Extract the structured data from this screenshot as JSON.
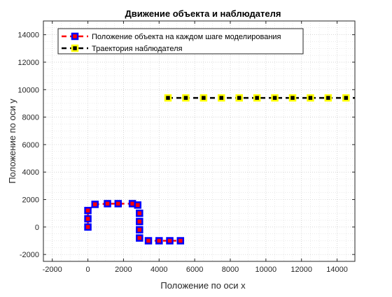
{
  "chart_data": {
    "type": "line",
    "title": "Движение объекта и наблюдателя",
    "xlabel": "Положение по оси x",
    "ylabel": "Положение по оси y",
    "xlim": [
      -2500,
      15000
    ],
    "ylim": [
      -2500,
      15000
    ],
    "xticks": [
      -2000,
      0,
      2000,
      4000,
      6000,
      8000,
      10000,
      12000,
      14000
    ],
    "yticks": [
      -2000,
      0,
      2000,
      4000,
      6000,
      8000,
      10000,
      12000,
      14000
    ],
    "grid": "on (major + minor, dotted)",
    "legend_location": "top-left",
    "series": [
      {
        "name": "Положение объекта на каждом шаге моделирования",
        "line_color": "#ff0000",
        "line_style": "dashed",
        "marker": "square",
        "marker_face": "#ff0000",
        "marker_edge": "#0000ff",
        "points": [
          [
            0,
            0
          ],
          [
            0,
            600
          ],
          [
            0,
            1200
          ],
          [
            400,
            1650
          ],
          [
            1100,
            1700
          ],
          [
            1700,
            1700
          ],
          [
            2500,
            1700
          ],
          [
            2800,
            1600
          ],
          [
            2900,
            1000
          ],
          [
            2900,
            400
          ],
          [
            2900,
            -200
          ],
          [
            2900,
            -800
          ],
          [
            3400,
            -1000
          ],
          [
            4000,
            -1000
          ],
          [
            4600,
            -1000
          ],
          [
            5200,
            -1000
          ]
        ]
      },
      {
        "name": "Траектория наблюдателя",
        "line_color": "#000000",
        "line_style": "dashed",
        "marker": "square",
        "marker_face": "#000000",
        "marker_edge": "#ffff00",
        "points": [
          [
            4500,
            9400
          ],
          [
            5500,
            9400
          ],
          [
            6500,
            9400
          ],
          [
            7500,
            9400
          ],
          [
            8500,
            9400
          ],
          [
            9500,
            9400
          ],
          [
            10500,
            9400
          ],
          [
            11500,
            9400
          ],
          [
            12500,
            9400
          ],
          [
            13500,
            9400
          ],
          [
            14500,
            9400
          ],
          [
            15000,
            9400
          ]
        ]
      }
    ]
  }
}
